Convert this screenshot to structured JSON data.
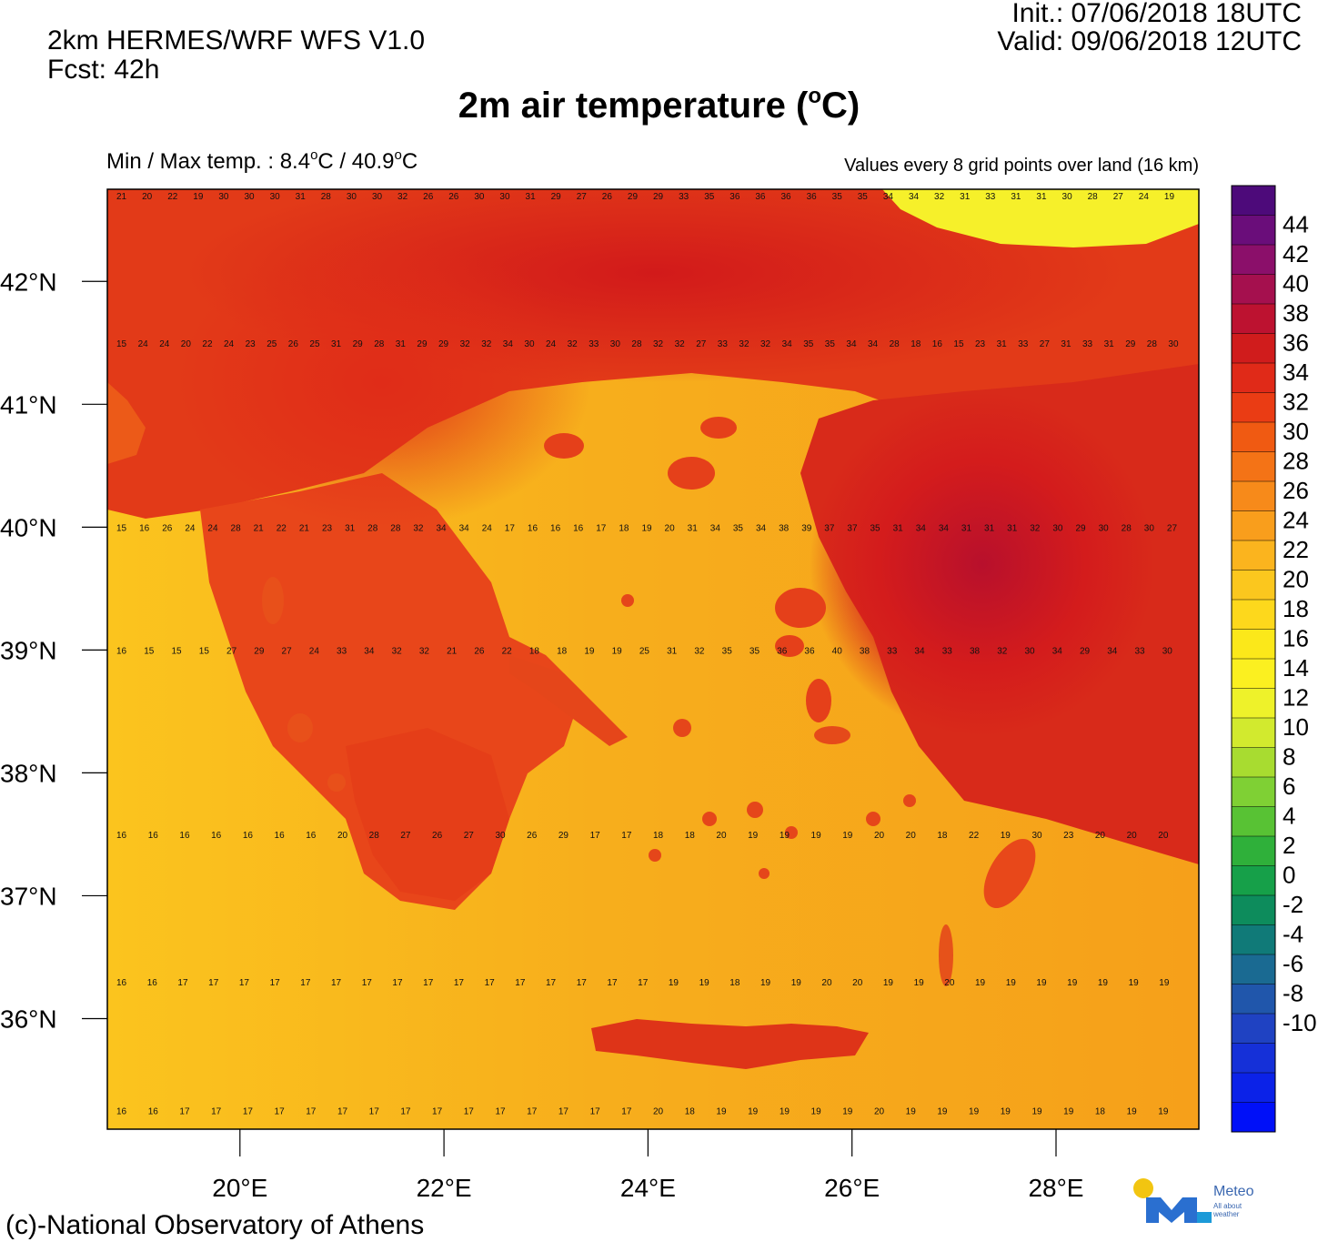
{
  "header": {
    "model": "2km HERMES/WRF WFS V1.0",
    "forecast": "Fcst: 42h",
    "init": "Init.:  07/06/2018 18UTC",
    "valid": "Valid: 09/06/2018 12UTC",
    "title": "2m air temperature (",
    "title_unit_sup": "o",
    "title_unit": "C)",
    "minmax_prefix": "Min / Max temp. : 8.4",
    "minmax_mid": "C / 40.9",
    "minmax_suffix": "C",
    "minmax_sup": "o",
    "grid_note": "Values every 8 grid points over land (16 km)"
  },
  "map": {
    "lat_labels": [
      "42°N",
      "41°N",
      "40°N",
      "39°N",
      "38°N",
      "37°N",
      "36°N"
    ],
    "lon_labels": [
      "20°E",
      "22°E",
      "24°E",
      "26°E",
      "28°E"
    ],
    "lon_range": [
      18.7,
      29.4
    ],
    "lat_range": [
      35.1,
      42.75
    ],
    "sample_rows": [
      {
        "lat": 42.7,
        "values": [
          "21",
          "20",
          "22",
          "19",
          "30",
          "30",
          "30",
          "31",
          "28",
          "30",
          "30",
          "32",
          "26",
          "26",
          "30",
          "30",
          "31",
          "29",
          "27",
          "26",
          "29",
          "29",
          "33",
          "35",
          "36",
          "36",
          "36",
          "36",
          "35",
          "35",
          "34",
          "34",
          "32",
          "31",
          "33",
          "31",
          "31",
          "30",
          "28",
          "27",
          "24",
          "19"
        ]
      },
      {
        "lat": 41.5,
        "values": [
          "15",
          "24",
          "24",
          "20",
          "22",
          "24",
          "23",
          "25",
          "26",
          "25",
          "31",
          "29",
          "28",
          "31",
          "29",
          "29",
          "32",
          "32",
          "34",
          "30",
          "24",
          "32",
          "33",
          "30",
          "28",
          "32",
          "32",
          "27",
          "33",
          "32",
          "32",
          "34",
          "35",
          "35",
          "34",
          "34",
          "28",
          "18",
          "16",
          "15",
          "23",
          "31",
          "33",
          "27",
          "31",
          "33",
          "31",
          "29",
          "28",
          "30"
        ]
      },
      {
        "lat": 40.0,
        "values": [
          "15",
          "16",
          "26",
          "24",
          "24",
          "28",
          "21",
          "22",
          "21",
          "23",
          "31",
          "28",
          "28",
          "32",
          "34",
          "34",
          "24",
          "17",
          "16",
          "16",
          "16",
          "17",
          "18",
          "19",
          "20",
          "31",
          "34",
          "35",
          "34",
          "38",
          "39",
          "37",
          "37",
          "35",
          "31",
          "34",
          "34",
          "31",
          "31",
          "31",
          "32",
          "30",
          "29",
          "30",
          "28",
          "30",
          "27"
        ]
      },
      {
        "lat": 39.0,
        "values": [
          "16",
          "15",
          "15",
          "15",
          "27",
          "29",
          "27",
          "24",
          "33",
          "34",
          "32",
          "32",
          "21",
          "26",
          "22",
          "18",
          "18",
          "19",
          "19",
          "25",
          "31",
          "32",
          "35",
          "35",
          "36",
          "36",
          "40",
          "38",
          "33",
          "34",
          "33",
          "38",
          "32",
          "30",
          "34",
          "29",
          "34",
          "33",
          "30"
        ]
      },
      {
        "lat": 37.5,
        "values": [
          "16",
          "16",
          "16",
          "16",
          "16",
          "16",
          "16",
          "20",
          "28",
          "27",
          "26",
          "27",
          "30",
          "26",
          "29",
          "17",
          "17",
          "18",
          "18",
          "20",
          "19",
          "19",
          "19",
          "19",
          "20",
          "20",
          "18",
          "22",
          "19",
          "30",
          "23",
          "20",
          "20",
          "20"
        ]
      },
      {
        "lat": 36.3,
        "values": [
          "16",
          "16",
          "17",
          "17",
          "17",
          "17",
          "17",
          "17",
          "17",
          "17",
          "17",
          "17",
          "17",
          "17",
          "17",
          "17",
          "17",
          "17",
          "19",
          "19",
          "18",
          "19",
          "19",
          "20",
          "20",
          "19",
          "19",
          "20",
          "19",
          "19",
          "19",
          "19",
          "19",
          "19",
          "19"
        ]
      },
      {
        "lat": 35.25,
        "values": [
          "16",
          "16",
          "17",
          "17",
          "17",
          "17",
          "17",
          "17",
          "17",
          "17",
          "17",
          "17",
          "17",
          "17",
          "17",
          "17",
          "17",
          "20",
          "18",
          "19",
          "19",
          "19",
          "19",
          "19",
          "20",
          "19",
          "19",
          "19",
          "19",
          "19",
          "19",
          "18",
          "19",
          "19"
        ]
      }
    ]
  },
  "colorbar": {
    "labels": [
      "44",
      "42",
      "40",
      "38",
      "36",
      "34",
      "32",
      "30",
      "28",
      "26",
      "24",
      "22",
      "20",
      "18",
      "16",
      "14",
      "12",
      "10",
      "8",
      "6",
      "4",
      "2",
      "0",
      "-2",
      "-4",
      "-6",
      "-8",
      "-10"
    ],
    "colors_top_to_bottom": [
      "#4d0a7a",
      "#6a0d7a",
      "#8b0f6a",
      "#a5104e",
      "#bd1230",
      "#d01c1c",
      "#e02a18",
      "#ea3c14",
      "#f05a12",
      "#f47316",
      "#f78a1a",
      "#f99e1c",
      "#fbb41e",
      "#fbc71e",
      "#fdd81c",
      "#fbe81a",
      "#fbf020",
      "#eef22a",
      "#d2ea2e",
      "#a8dc30",
      "#7fd034",
      "#58c234",
      "#2fb03a",
      "#16a049",
      "#0d8c5c",
      "#107a78",
      "#1a6a92",
      "#2056ab",
      "#1f42c2",
      "#1530d8",
      "#0b22e8",
      "#0010f8"
    ]
  },
  "footer": {
    "copyright": "(c)-National Observatory of Athens",
    "logo_name": "Meteo",
    "logo_tagline": "All about weather"
  }
}
